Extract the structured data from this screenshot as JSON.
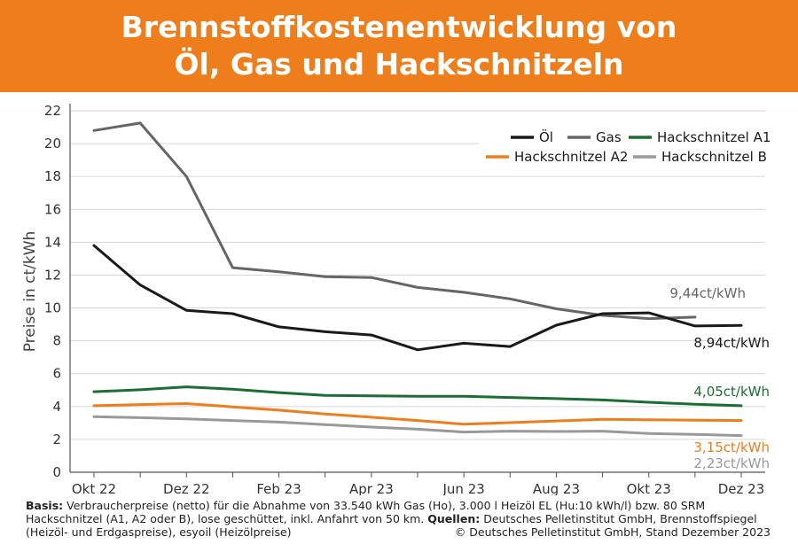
{
  "header": {
    "title_line1": "Brennstoffkostenentwicklung von",
    "title_line2": "Öl, Gas und Hackschnitzeln"
  },
  "chart_data": {
    "type": "line",
    "title": "Brennstoffkostenentwicklung von Öl, Gas und Hackschnitzeln",
    "ylabel": "Preise in ct/kWh",
    "xlabel": "",
    "ylim": [
      0,
      22
    ],
    "y_ticks": [
      0,
      2,
      4,
      6,
      8,
      10,
      12,
      14,
      16,
      18,
      20,
      22
    ],
    "grid": true,
    "legend_position": "top-right",
    "x": [
      "Okt 22",
      "Nov 22",
      "Dez 22",
      "Jan 23",
      "Feb 23",
      "Mär 23",
      "Apr 23",
      "Mai 23",
      "Jun 23",
      "Jul 23",
      "Aug 23",
      "Sep 23",
      "Okt 23",
      "Nov 23",
      "Dez 23"
    ],
    "x_tick_labels": [
      "Okt 22",
      "",
      "Dez 22",
      "",
      "Feb 23",
      "",
      "Apr 23",
      "",
      "Jun 23",
      "",
      "Aug 23",
      "",
      "Okt 23",
      "",
      "Dez 23"
    ],
    "series": [
      {
        "name": "Öl",
        "color": "#1a1a1a",
        "values": [
          13.8,
          11.4,
          9.85,
          9.65,
          8.85,
          8.55,
          8.35,
          7.45,
          7.85,
          7.65,
          8.95,
          9.65,
          9.7,
          8.9,
          8.94
        ],
        "end_label": "8,94ct/kWh"
      },
      {
        "name": "Gas",
        "color": "#666666",
        "values": [
          20.8,
          21.25,
          18.0,
          12.45,
          12.2,
          11.9,
          11.85,
          11.25,
          10.95,
          10.55,
          9.95,
          9.55,
          9.35,
          9.44,
          null
        ],
        "end_label": "9,44ct/kWh"
      },
      {
        "name": "Hackschnitzel A1",
        "color": "#1a6e32",
        "values": [
          4.9,
          5.02,
          5.2,
          5.05,
          4.85,
          4.68,
          4.65,
          4.62,
          4.62,
          4.55,
          4.48,
          4.4,
          4.26,
          4.14,
          4.05
        ],
        "end_label": "4,05ct/kWh"
      },
      {
        "name": "Hackschnitzel A2",
        "color": "#ee7d1c",
        "values": [
          4.05,
          4.12,
          4.18,
          3.98,
          3.78,
          3.55,
          3.35,
          3.15,
          2.92,
          3.02,
          3.12,
          3.22,
          3.2,
          3.17,
          3.15
        ],
        "end_label": "3,15ct/kWh"
      },
      {
        "name": "Hackschnitzel B",
        "color": "#999999",
        "values": [
          3.38,
          3.32,
          3.25,
          3.15,
          3.05,
          2.9,
          2.75,
          2.62,
          2.45,
          2.5,
          2.48,
          2.5,
          2.36,
          2.3,
          2.23
        ],
        "end_label": "2,23ct/kWh"
      }
    ]
  },
  "footer": {
    "basis_label": "Basis:",
    "basis_text": " Verbraucherpreise (netto) für die Abnahme von 33.540 kWh Gas (Ho), 3.000 l Heizöl EL (Hu:10 kWh/l) bzw. 80 SRM Hackschnitzel (A1, A2 oder B), lose geschüttet, inkl. Anfahrt von 50 km. ",
    "sources_label": "Quellen:",
    "sources_text": " Deutsches Pelletinstitut GmbH, Brennstoffspiegel (Heizöl- und Erdgaspreise), esyoil (Heizölpreise)",
    "copyright": "© Deutsches Pelletinstitut GmbH, Stand Dezember 2023"
  }
}
